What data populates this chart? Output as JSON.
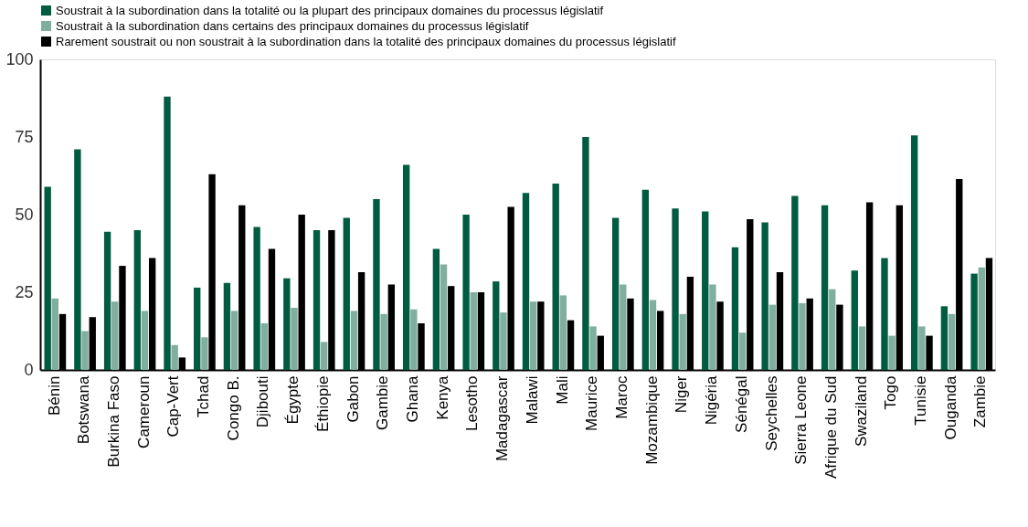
{
  "chart_data": {
    "type": "bar",
    "categories": [
      "Bénin",
      "Botswana",
      "Burkina Faso",
      "Cameroun",
      "Cap-Vert",
      "Tchad",
      "Congo B.",
      "Djibouti",
      "Égypte",
      "Éthiopie",
      "Gabon",
      "Gambie",
      "Ghana",
      "Kenya",
      "Lesotho",
      "Madagascar",
      "Malawi",
      "Mali",
      "Maurice",
      "Maroc",
      "Mozambique",
      "Niger",
      "Nigéria",
      "Sénégal",
      "Seychelles",
      "Sierra Leone",
      "Afrique du Sud",
      "Swaziland",
      "Togo",
      "Tunisie",
      "Ouganda",
      "Zambie"
    ],
    "series": [
      {
        "name": "Soustrait à la subordination dans la totalité ou la plupart des principaux domaines du processus législatif",
        "color": "#005c40",
        "values": [
          59,
          71,
          44.5,
          45,
          88,
          26.5,
          28,
          46,
          29.5,
          45,
          49,
          55,
          66,
          39,
          50,
          28.5,
          57,
          60,
          75,
          49,
          58,
          52,
          51,
          39.5,
          47.5,
          56,
          53,
          32,
          36,
          75.5,
          20.5,
          31
        ]
      },
      {
        "name": "Soustrait à la subordination dans certains des principaux domaines du processus législatif",
        "color": "#80ae9f",
        "values": [
          23,
          12.5,
          22,
          19,
          8,
          10.5,
          19,
          15,
          20,
          9,
          19,
          18,
          19.5,
          34,
          25,
          18.5,
          22,
          24,
          14,
          27.5,
          22.5,
          18,
          27.5,
          12,
          21,
          21.5,
          26,
          14,
          11,
          14,
          18,
          33
        ]
      },
      {
        "name": "Rarement soustrait ou non soustrait à la subordination dans la totalité des principaux domaines du processus législatif",
        "color": "#000000",
        "values": [
          18,
          17,
          33.5,
          36,
          4,
          63,
          53,
          39,
          50,
          45,
          31.5,
          27.5,
          15,
          27,
          25,
          52.5,
          22,
          16,
          11,
          23,
          19,
          30,
          22,
          48.5,
          31.5,
          23,
          21,
          54,
          53,
          11,
          61.5,
          36
        ]
      }
    ],
    "ylim": [
      0,
      100
    ],
    "yticks": [
      0,
      25,
      50,
      75,
      100
    ],
    "grid": false,
    "legend": "top left"
  }
}
